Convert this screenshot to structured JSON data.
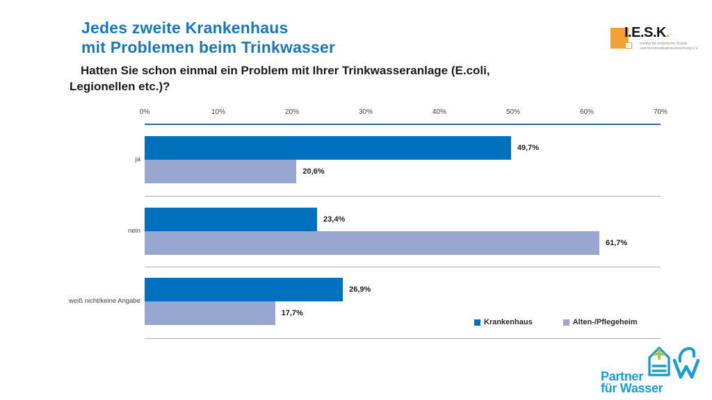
{
  "slide": {
    "title_line1": "Jedes zweite Krankenhaus",
    "title_line2": "mit Problemen beim Trinkwasser",
    "question_line1": "Hatten Sie schon einmal ein Problem mit Ihrer Trinkwasseranlage (E.coli,",
    "question_line2": "Legionellen etc.)?"
  },
  "iesk_logo": {
    "name_main": "I.E.S.K",
    "name_dot": ".",
    "subtitle_line1": "Institut für empirische Sozial-",
    "subtitle_line2": "und Kommunikationsforschung e.V."
  },
  "pfw_logo": {
    "line1": "Partner",
    "line2": "für Wasser"
  },
  "chart_data": {
    "type": "bar",
    "orientation": "horizontal",
    "title": "Hatten Sie schon einmal ein Problem mit Ihrer Trinkwasseranlage (E.coli, Legionellen etc.)?",
    "categories": [
      "ja",
      "nein",
      "weiß nicht/keine Angabe"
    ],
    "series": [
      {
        "name": "Krankenhaus",
        "color": "#0071BE",
        "values": [
          49.7,
          23.4,
          26.9
        ],
        "labels": [
          "49,7%",
          "23,4%",
          "26,9%"
        ]
      },
      {
        "name": "Alten-/Pflegeheim",
        "color": "#98A7D0",
        "values": [
          20.6,
          61.7,
          17.7
        ],
        "labels": [
          "20,6%",
          "61,7%",
          "17,7%"
        ]
      }
    ],
    "x_ticks": [
      "0%",
      "10%",
      "20%",
      "30%",
      "40%",
      "50%",
      "60%",
      "70%"
    ],
    "xlim": [
      0,
      70
    ],
    "legend_position": "bottom-right",
    "grid": "horizontal group separators"
  },
  "colors": {
    "title_blue": "#1877BE",
    "bar_dark_blue": "#0071BE",
    "bar_light_blue": "#98A7D0",
    "axis_line_blue": "#2166AE",
    "separator_gray": "#ABABAB",
    "iesk_orange": "#F5A033",
    "pfw_blue": "#1A9CD8",
    "pfw_green": "#A9C23F"
  }
}
